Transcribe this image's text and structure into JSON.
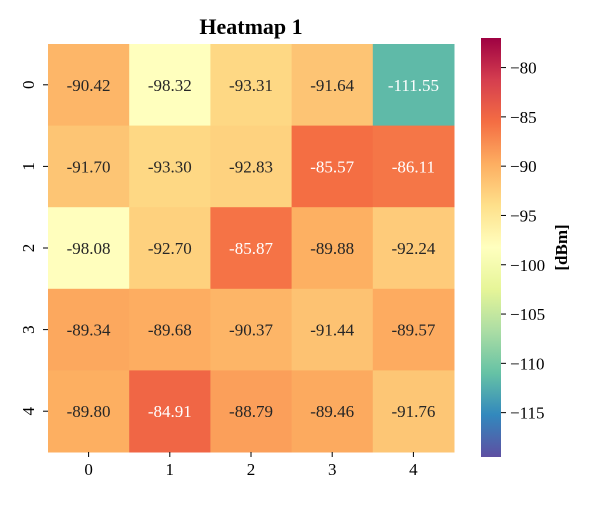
{
  "chart_data": {
    "type": "heatmap",
    "title": "Heatmap 1",
    "x_categories": [
      "0",
      "1",
      "2",
      "3",
      "4"
    ],
    "y_categories": [
      "0",
      "1",
      "2",
      "3",
      "4"
    ],
    "values": [
      [
        -90.42,
        -98.32,
        -93.31,
        -91.64,
        -111.55
      ],
      [
        -91.7,
        -93.3,
        -92.83,
        -85.57,
        -86.11
      ],
      [
        -98.08,
        -92.7,
        -85.87,
        -89.88,
        -92.24
      ],
      [
        -89.34,
        -89.68,
        -90.37,
        -91.44,
        -89.57
      ],
      [
        -89.8,
        -84.91,
        -88.79,
        -89.46,
        -91.76
      ]
    ],
    "value_format": "2 decimals",
    "colorbar": {
      "label": "[dBm]",
      "range": [
        -119.5,
        -77.0
      ],
      "ticks": [
        -80,
        -85,
        -90,
        -95,
        -100,
        -105,
        -110,
        -115
      ],
      "tick_labels": [
        "−80",
        "−85",
        "−90",
        "−95",
        "−100",
        "−105",
        "−110",
        "−115"
      ],
      "colormap": "Spectral_r"
    }
  }
}
